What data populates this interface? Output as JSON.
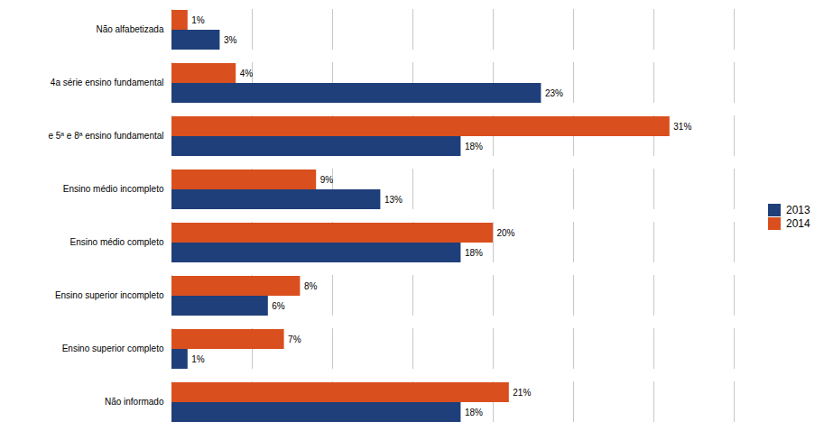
{
  "chart_data": {
    "type": "bar",
    "orientation": "horizontal",
    "categories": [
      "Não informado",
      "Ensino superior completo",
      "Ensino superior incompleto",
      "Ensino médio completo",
      "Ensino médio incompleto",
      "e 5ª e 8ª ensino fundamental",
      "4a série ensino fundamental",
      "Não alfabetizada"
    ],
    "series": [
      {
        "name": "2013",
        "color": "#1f3f7a",
        "values": [
          18,
          1,
          6,
          18,
          13,
          18,
          23,
          3
        ],
        "value_labels": [
          "18%",
          "1%",
          "6%",
          "18%",
          "13%",
          "18%",
          "23%",
          "3%"
        ]
      },
      {
        "name": "2014",
        "color": "#d94f1e",
        "values": [
          21,
          7,
          8,
          20,
          9,
          31,
          4,
          1
        ],
        "value_labels": [
          "21%",
          "7%",
          "8%",
          "20%",
          "9%",
          "31%",
          "4%",
          "1%"
        ]
      }
    ],
    "xlim": [
      0,
      35
    ],
    "xticks": [
      0,
      5,
      10,
      15,
      20,
      25,
      30,
      35
    ],
    "grid": true,
    "legend": "right",
    "data_labels": true,
    "tick_labels": "y"
  }
}
